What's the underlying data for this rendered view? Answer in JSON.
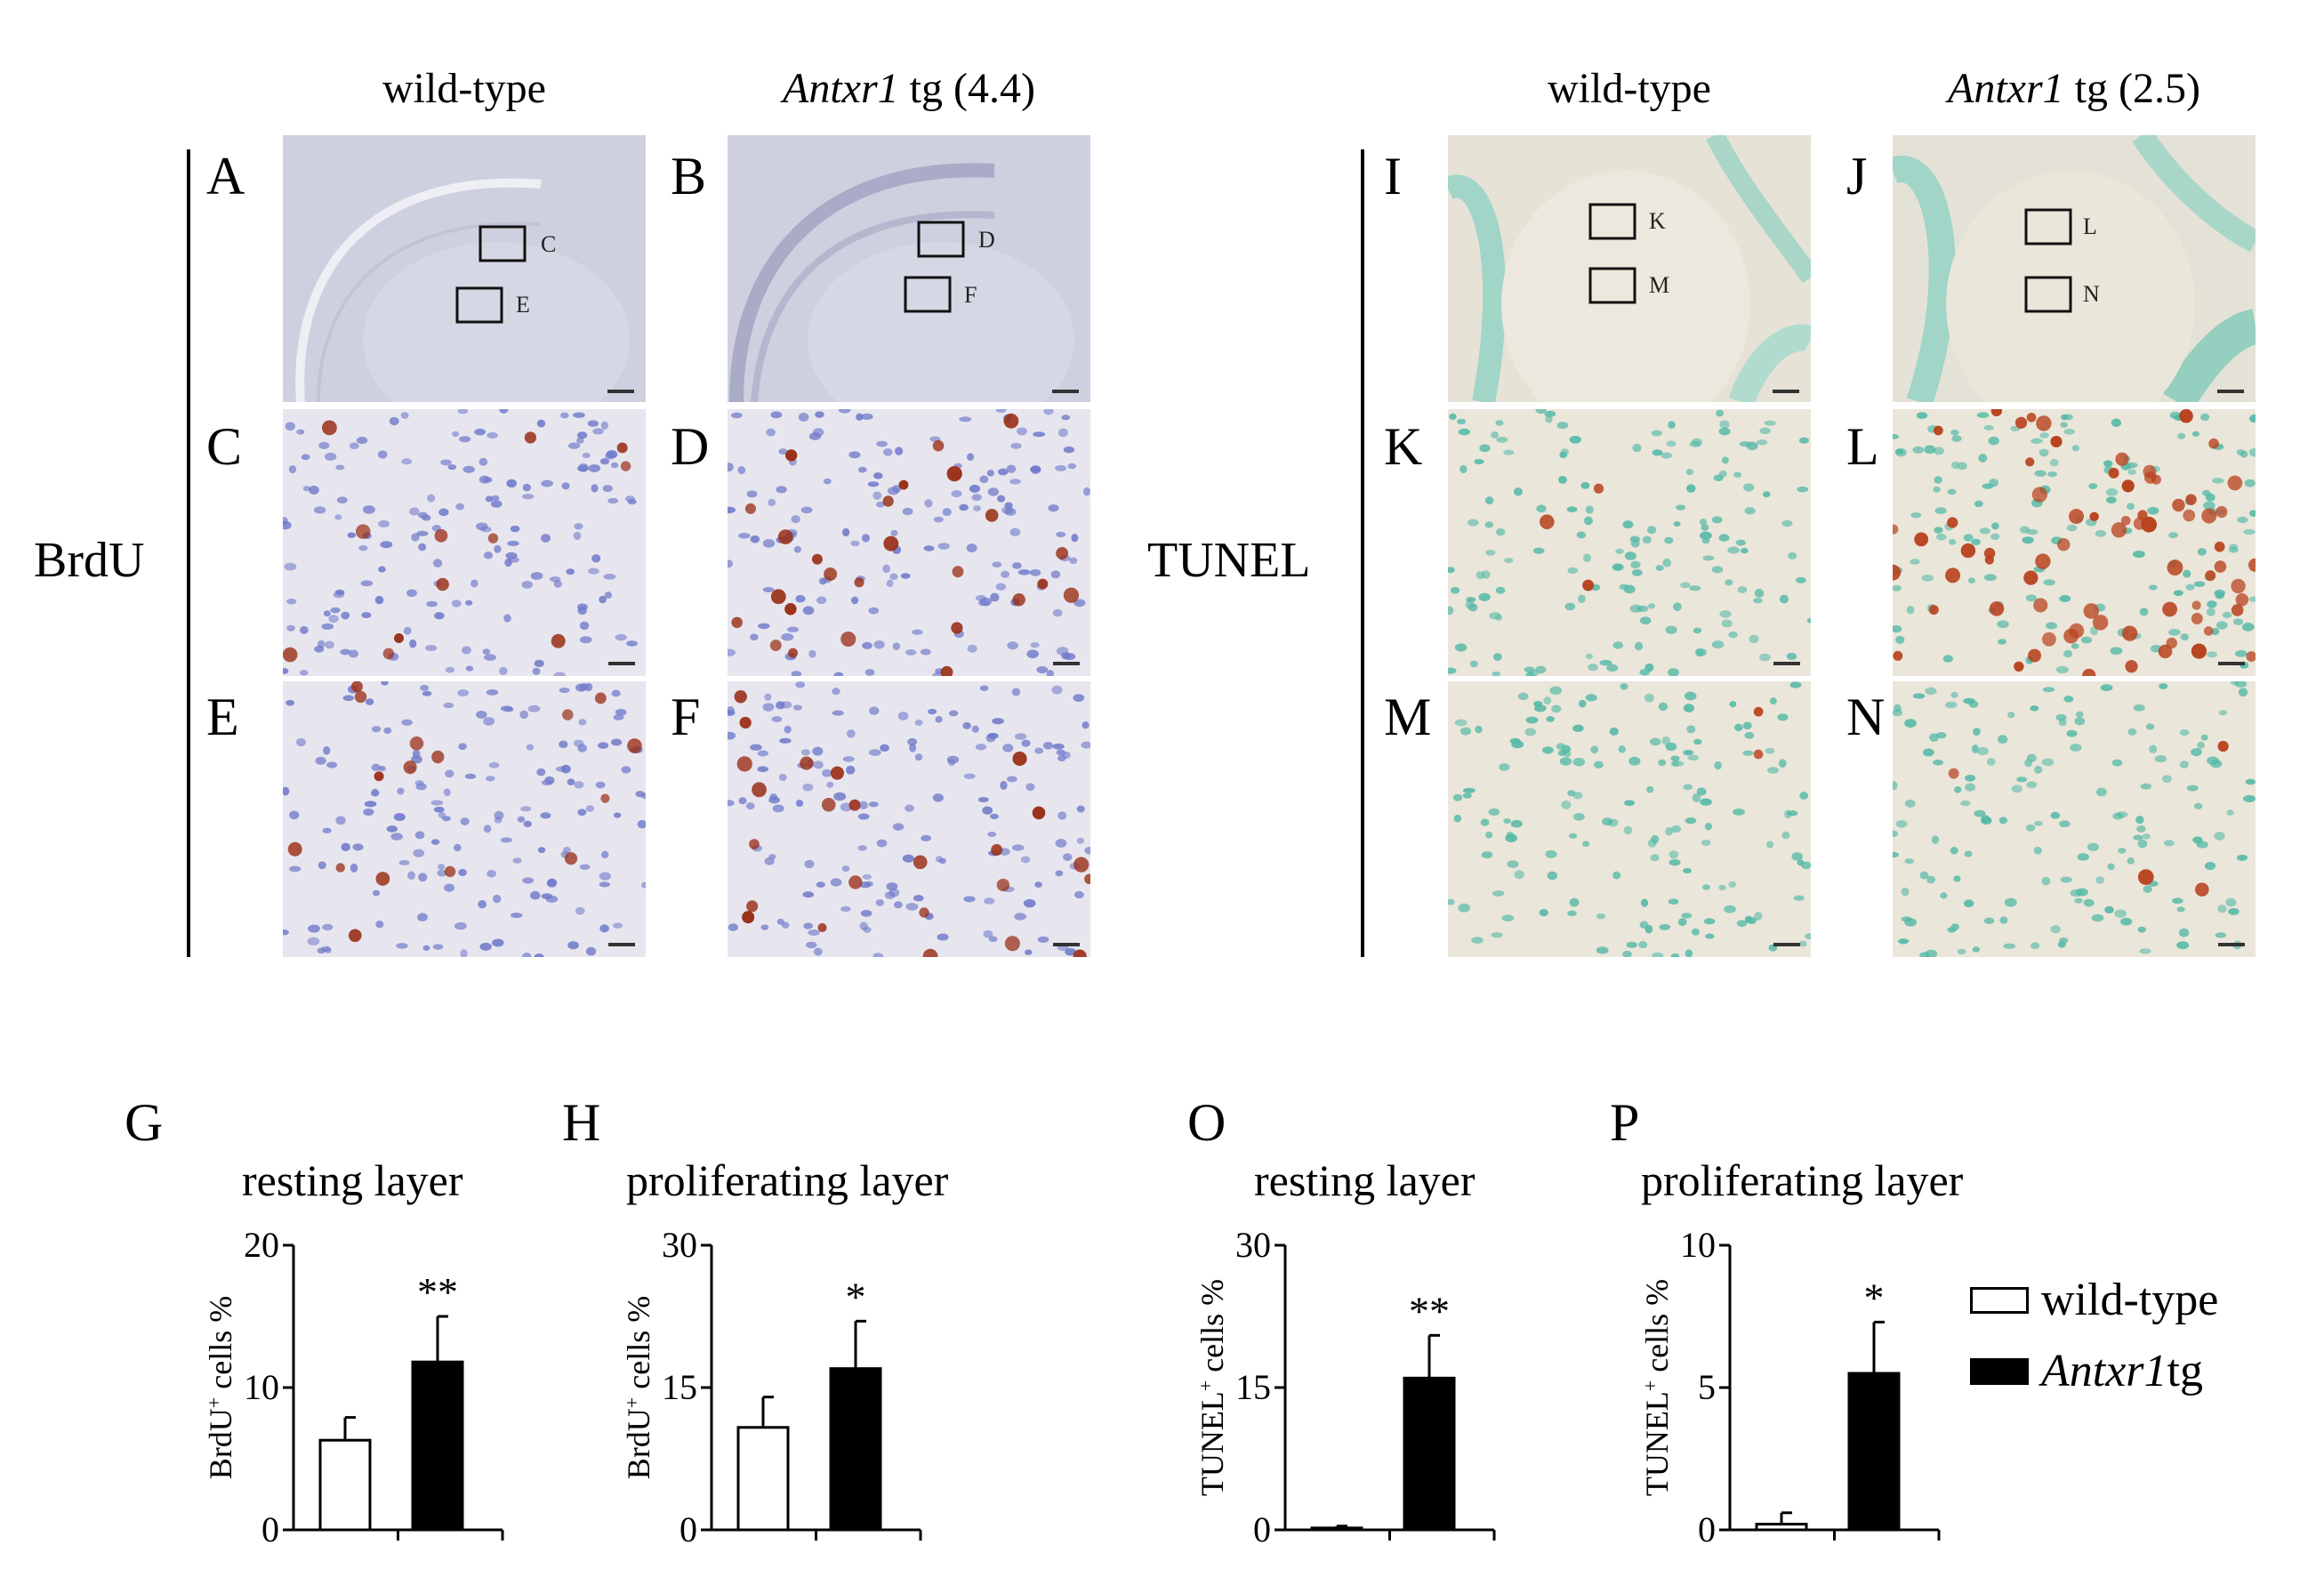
{
  "micrographs": {
    "left": {
      "columns": [
        {
          "genotype": "wild-type",
          "prefix": "",
          "suffix": ""
        },
        {
          "genotype": "",
          "prefix": "Antxr1",
          "suffix": " tg (4.4)"
        }
      ],
      "stain": "BrdU",
      "panels": [
        "A",
        "B",
        "C",
        "D",
        "E",
        "F"
      ],
      "boxes": [
        "C",
        "E",
        "D",
        "F"
      ]
    },
    "right": {
      "columns": [
        {
          "genotype": "wild-type",
          "prefix": "",
          "suffix": ""
        },
        {
          "genotype": "",
          "prefix": "Antxr1",
          "suffix": " tg (2.5)"
        }
      ],
      "stain": "TUNEL",
      "panels": [
        "I",
        "J",
        "K",
        "L",
        "M",
        "N"
      ],
      "boxes": [
        "K",
        "M",
        "L",
        "N"
      ]
    }
  },
  "colors": {
    "brdu_tissue": "#cfd0df",
    "brdu_field": "#e7e6ef",
    "brdu_nucleus": "#6f79c9",
    "brdu_positive": "#9a3018",
    "tunel_tissue": "#e6e2d6",
    "tunel_field": "#ebe6da",
    "tunel_nucleus": "#52b8a6",
    "tunel_positive": "#b8421e"
  },
  "charts": {
    "G": {
      "letter": "G",
      "title": "resting layer",
      "ylabel_base": "BrdU",
      "ylabel_sup": "+",
      "ylabel_rest": " cells %"
    },
    "H": {
      "letter": "H",
      "title": "proliferating layer",
      "ylabel_base": "BrdU",
      "ylabel_sup": "+",
      "ylabel_rest": " cells %"
    },
    "O": {
      "letter": "O",
      "title": "resting layer",
      "ylabel_base": "TUNEL",
      "ylabel_sup": "+",
      "ylabel_rest": " cells %"
    },
    "P": {
      "letter": "P",
      "title": "proliferating layer",
      "ylabel_base": "TUNEL",
      "ylabel_sup": "+",
      "ylabel_rest": " cells %"
    }
  },
  "chart_data": [
    {
      "type": "bar",
      "id": "G",
      "title": "resting layer",
      "ylabel": "BrdU+ cells %",
      "categories": [
        "wild-type",
        "Antxr1 tg"
      ],
      "values": [
        6.3,
        11.8
      ],
      "errors": [
        1.6,
        3.2
      ],
      "ylim": [
        0,
        20
      ],
      "yticks": [
        0,
        10,
        20
      ],
      "significance": "**"
    },
    {
      "type": "bar",
      "id": "H",
      "title": "proliferating layer",
      "ylabel": "BrdU+ cells %",
      "categories": [
        "wild-type",
        "Antxr1 tg"
      ],
      "values": [
        10.8,
        17.0
      ],
      "errors": [
        3.2,
        5.0
      ],
      "ylim": [
        0,
        30
      ],
      "yticks": [
        0,
        15,
        30
      ],
      "significance": "*"
    },
    {
      "type": "bar",
      "id": "O",
      "title": "resting layer",
      "ylabel": "TUNEL+ cells %",
      "categories": [
        "wild-type",
        "Antxr1 tg"
      ],
      "values": [
        0.2,
        16.0
      ],
      "errors": [
        0.2,
        4.5
      ],
      "ylim": [
        0,
        30
      ],
      "yticks": [
        0,
        15,
        30
      ],
      "significance": "**"
    },
    {
      "type": "bar",
      "id": "P",
      "title": "proliferating layer",
      "ylabel": "TUNEL+ cells %",
      "categories": [
        "wild-type",
        "Antxr1 tg"
      ],
      "values": [
        0.2,
        5.5
      ],
      "errors": [
        0.4,
        1.8
      ],
      "ylim": [
        0,
        10
      ],
      "yticks": [
        0,
        5,
        10
      ],
      "significance": "*"
    }
  ],
  "legend": [
    {
      "prefix": "wild-type",
      "suffix": "",
      "fill": "#ffffff"
    },
    {
      "prefix": "Antxr1",
      "suffix": " tg",
      "fill": "#000000"
    }
  ]
}
